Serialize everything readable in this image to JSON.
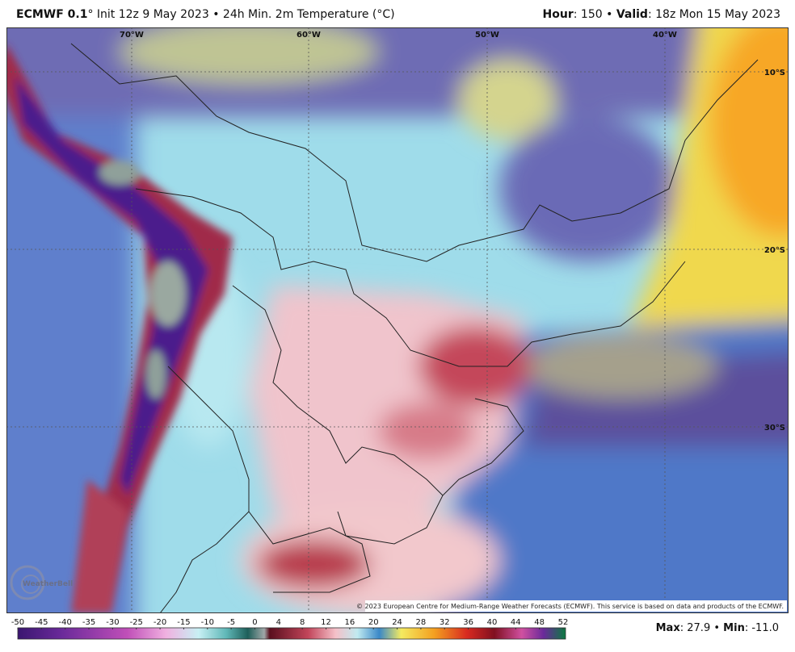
{
  "header": {
    "model": "ECMWF 0.1",
    "degree": "°",
    "init": "Init 12z 9 May 2023",
    "separator": "•",
    "product": "24h Min. 2m Temperature (°C)",
    "hour_label": "Hour",
    "colon": ":",
    "hour": "150",
    "valid_label": "Valid",
    "valid": "18z Mon 15 May 2023"
  },
  "map": {
    "lon_labels": [
      "70°W",
      "60°W",
      "50°W",
      "40°W"
    ],
    "lat_labels": [
      "10°S",
      "20°S",
      "30°S"
    ],
    "copyright": "© 2023 European Centre for Medium-Range Weather Forecasts (ECMWF). This service is based on data and products of the ECMWF.",
    "logo": "WeatherBell"
  },
  "colorbar": {
    "ticks": [
      -50,
      -45,
      -40,
      -35,
      -30,
      -25,
      -20,
      -15,
      -10,
      -5,
      0,
      4,
      8,
      12,
      16,
      20,
      24,
      28,
      32,
      36,
      40,
      44,
      48,
      52
    ]
  },
  "footer": {
    "max_label": "Max",
    "max": "27.9",
    "min_label": "Min",
    "min": "-11.0"
  }
}
